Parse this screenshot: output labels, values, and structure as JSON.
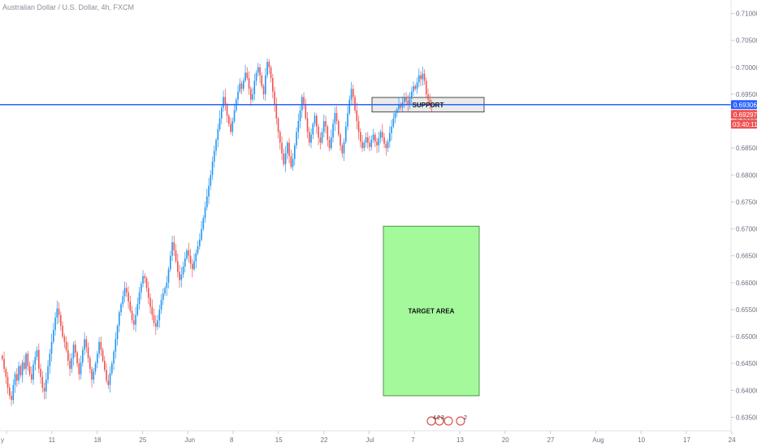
{
  "header": {
    "symbol_title": "Australian Dollar / U.S. Dollar, 4h, FXCM"
  },
  "colors": {
    "up": "#2196f3",
    "down": "#ef5350",
    "support_line": "#2962ff",
    "price_badge": "#2962ff",
    "last_badge": "#f05252",
    "target_fill": "#a4f99b",
    "support_box_fill": "#e6e6e6"
  },
  "chart_data": {
    "type": "candlestick",
    "y_axis": {
      "ylim": [
        0.6325,
        0.7125
      ],
      "ticks": [
        "0.71000",
        "0.70500",
        "0.70000",
        "0.69500",
        "0.69000",
        "0.68500",
        "0.68000",
        "0.67500",
        "0.67000",
        "0.66500",
        "0.66000",
        "0.65500",
        "0.65000",
        "0.64500",
        "0.64000",
        "0.63500"
      ]
    },
    "x_axis": {
      "ticks": [
        "y",
        "11",
        "18",
        "25",
        "Jun",
        "8",
        "15",
        "22",
        "Jul",
        "7",
        "13",
        "20",
        "27",
        "Aug",
        "10",
        "17",
        "24"
      ]
    },
    "price_labels": {
      "support_price": "0.69306",
      "last_price": "0.69297",
      "countdown": "03:40:11"
    },
    "support_level": 0.69306,
    "annotations": {
      "support_label": "SUPPORT",
      "support_zone": [
        0.6917,
        0.6944
      ],
      "target_label": "TARGET AREA",
      "target_zone": [
        0.639,
        0.6705
      ]
    },
    "events": {
      "count_a": "4",
      "count_b": "2",
      "count_c": "3",
      "count_d": "2"
    },
    "closes": [
      0.6458,
      0.644,
      0.6425,
      0.6405,
      0.639,
      0.6382,
      0.641,
      0.643,
      0.6418,
      0.6445,
      0.6428,
      0.6452,
      0.644,
      0.6468,
      0.6445,
      0.643,
      0.642,
      0.6448,
      0.6462,
      0.6475,
      0.644,
      0.6425,
      0.6405,
      0.6398,
      0.642,
      0.6445,
      0.6468,
      0.649,
      0.6512,
      0.6535,
      0.6552,
      0.654,
      0.652,
      0.65,
      0.649,
      0.6475,
      0.6455,
      0.644,
      0.646,
      0.6485,
      0.647,
      0.645,
      0.643,
      0.6452,
      0.6475,
      0.6495,
      0.648,
      0.646,
      0.644,
      0.642,
      0.6435,
      0.645,
      0.6468,
      0.649,
      0.6475,
      0.6455,
      0.6438,
      0.6418,
      0.641,
      0.6432,
      0.645,
      0.6472,
      0.6495,
      0.652,
      0.6545,
      0.656,
      0.6575,
      0.659,
      0.6582,
      0.6565,
      0.6548,
      0.653,
      0.6522,
      0.654,
      0.656,
      0.6582,
      0.6598,
      0.6612,
      0.6608,
      0.659,
      0.6572,
      0.6555,
      0.654,
      0.6525,
      0.6518,
      0.653,
      0.655,
      0.6568,
      0.658,
      0.659,
      0.66,
      0.6625,
      0.665,
      0.6675,
      0.666,
      0.664,
      0.662,
      0.6605,
      0.6615,
      0.663,
      0.6645,
      0.666,
      0.665,
      0.6635,
      0.6625,
      0.664,
      0.6655,
      0.6668,
      0.668,
      0.67,
      0.672,
      0.674,
      0.676,
      0.678,
      0.68,
      0.6825,
      0.6845,
      0.6865,
      0.6885,
      0.6905,
      0.6925,
      0.6945,
      0.693,
      0.691,
      0.6895,
      0.688,
      0.69,
      0.692,
      0.694,
      0.6955,
      0.697,
      0.696,
      0.6975,
      0.699,
      0.698,
      0.696,
      0.694,
      0.695,
      0.6975,
      0.699,
      0.7,
      0.6985,
      0.6965,
      0.695,
      0.6985,
      0.701,
      0.7,
      0.698,
      0.6955,
      0.693,
      0.6905,
      0.688,
      0.686,
      0.684,
      0.682,
      0.684,
      0.686,
      0.6835,
      0.6815,
      0.683,
      0.6855,
      0.688,
      0.69,
      0.692,
      0.6945,
      0.693,
      0.6905,
      0.688,
      0.686,
      0.6875,
      0.6895,
      0.691,
      0.689,
      0.687,
      0.686,
      0.688,
      0.69,
      0.689,
      0.6865,
      0.685,
      0.687,
      0.6895,
      0.6915,
      0.69,
      0.6875,
      0.6855,
      0.684,
      0.6862,
      0.689,
      0.6915,
      0.694,
      0.696,
      0.6945,
      0.692,
      0.69,
      0.688,
      0.6862,
      0.685,
      0.686,
      0.687,
      0.686,
      0.6852,
      0.6865,
      0.6875,
      0.6862,
      0.6855,
      0.6868,
      0.688,
      0.687,
      0.6858,
      0.685,
      0.6862,
      0.6878,
      0.689,
      0.6905,
      0.6915,
      0.6922,
      0.693,
      0.6925,
      0.6935,
      0.6945,
      0.6938,
      0.693,
      0.6942,
      0.6955,
      0.6965,
      0.696,
      0.6972,
      0.6985,
      0.6978,
      0.6988,
      0.6975,
      0.695,
      0.694,
      0.6932,
      0.693
    ]
  }
}
